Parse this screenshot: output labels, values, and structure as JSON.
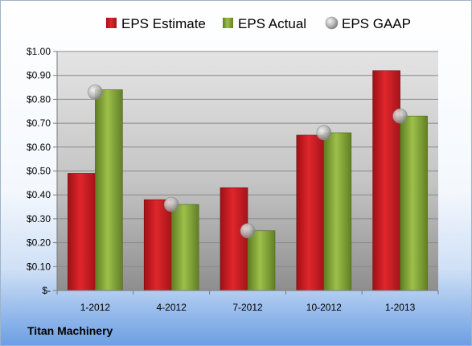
{
  "company": "Titan Machinery",
  "chart_data": {
    "type": "bar",
    "categories": [
      "1-2012",
      "4-2012",
      "7-2012",
      "10-2012",
      "1-2013"
    ],
    "series": [
      {
        "name": "EPS Estimate",
        "values": [
          0.49,
          0.38,
          0.43,
          0.65,
          0.92
        ],
        "color": "#d42027",
        "mark": "bar"
      },
      {
        "name": "EPS Actual",
        "values": [
          0.84,
          0.36,
          0.25,
          0.66,
          0.73
        ],
        "color": "#8cb03c",
        "mark": "bar"
      },
      {
        "name": "EPS GAAP",
        "values": [
          0.83,
          0.36,
          0.25,
          0.66,
          0.73
        ],
        "color": "#a9a9a9",
        "mark": "circle"
      }
    ],
    "ylim": [
      0,
      1.0
    ],
    "yticks": [
      0,
      0.1,
      0.2,
      0.3,
      0.4,
      0.5,
      0.6,
      0.7,
      0.8,
      0.9,
      1.0
    ],
    "ytick_labels": [
      "$-",
      "$0.10",
      "$0.20",
      "$0.30",
      "$0.40",
      "$0.50",
      "$0.60",
      "$0.70",
      "$0.80",
      "$0.90",
      "$1.00"
    ],
    "grid": true,
    "legend_position": "top"
  }
}
